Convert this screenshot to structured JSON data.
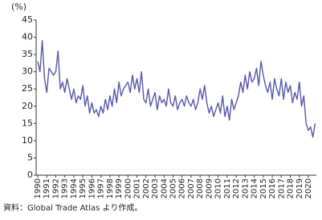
{
  "chart_data": {
    "type": "line",
    "y_unit_label": "(%)",
    "source": "資料：Global Trade Atlas より作成。",
    "categories": [
      "1990",
      null,
      null,
      null,
      "1991",
      null,
      null,
      null,
      "1992",
      null,
      null,
      null,
      "1993",
      null,
      null,
      null,
      "1994",
      null,
      null,
      null,
      "1995",
      null,
      null,
      null,
      "1996",
      null,
      null,
      null,
      "1997",
      null,
      null,
      null,
      "1998",
      null,
      null,
      null,
      "1999",
      null,
      null,
      null,
      "2000",
      null,
      null,
      null,
      "2001",
      null,
      null,
      null,
      "2002",
      null,
      null,
      null,
      "2003",
      null,
      null,
      null,
      "2004",
      null,
      null,
      null,
      "2005",
      null,
      null,
      null,
      "2006",
      null,
      null,
      null,
      "2007",
      null,
      null,
      null,
      "2008",
      null,
      null,
      null,
      "2009",
      null,
      null,
      null,
      "2010",
      null,
      null,
      null,
      "2011",
      null,
      null,
      null,
      "2012",
      null,
      null,
      null,
      "2013",
      null,
      null,
      null,
      "2014",
      null,
      null,
      null,
      "2015",
      null,
      null,
      null,
      "2016",
      null,
      null,
      null,
      "2017",
      null,
      null,
      null,
      "2018",
      null,
      null,
      null,
      "2019",
      null,
      null,
      null,
      "2020",
      null,
      null,
      null
    ],
    "values": [
      33,
      30,
      39,
      28,
      24,
      31,
      30,
      29,
      30,
      36,
      25,
      27,
      24,
      28,
      25,
      22,
      25,
      21,
      23,
      22,
      26,
      20,
      23,
      18,
      21,
      18,
      19,
      17,
      20,
      18,
      22,
      19,
      23,
      20,
      25,
      21,
      27,
      23,
      25,
      26,
      27,
      24,
      29,
      25,
      28,
      24,
      30,
      22,
      21,
      25,
      20,
      22,
      24,
      19,
      23,
      21,
      22,
      20,
      25,
      21,
      20,
      23,
      19,
      21,
      22,
      20,
      23,
      21,
      20,
      22,
      19,
      21,
      25,
      22,
      26,
      21,
      18,
      20,
      17,
      19,
      21,
      18,
      23,
      17,
      20,
      16,
      22,
      19,
      21,
      23,
      27,
      24,
      29,
      25,
      30,
      27,
      28,
      31,
      26,
      33,
      29,
      26,
      24,
      27,
      22,
      28,
      25,
      23,
      28,
      22,
      27,
      24,
      26,
      21,
      24,
      22,
      27,
      20,
      23,
      15,
      13,
      14,
      11,
      15
    ],
    "color": "#5558a8",
    "ylim": [
      0,
      45
    ],
    "yticks": [
      0,
      5,
      10,
      15,
      20,
      25,
      30,
      35,
      40,
      45
    ]
  }
}
